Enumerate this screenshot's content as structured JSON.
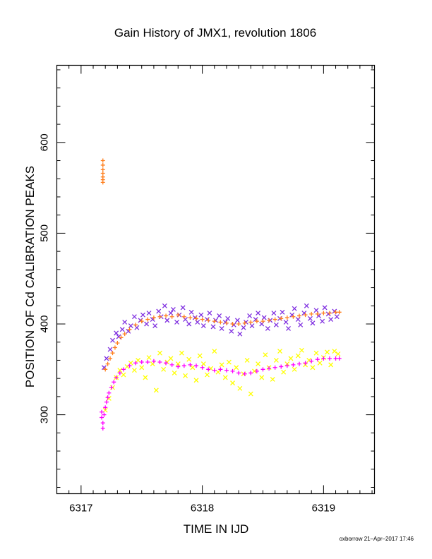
{
  "chart_data": {
    "type": "scatter",
    "title": "Gain History of JMX1, revolution 1806",
    "xlabel": "TIME IN IJD",
    "ylabel": "POSITION OF Cd CALIBRATION PEAKS",
    "credit": "oxborrow 21–Apr–2017 17:46",
    "xlim": [
      6316.8,
      6319.42
    ],
    "ylim": [
      213,
      685
    ],
    "xticks": [
      6317,
      6318,
      6319
    ],
    "yticks": [
      300,
      400,
      500,
      600
    ],
    "grid": false,
    "colors": {
      "purple": "#7f2fe0",
      "orange": "#ff7f1e",
      "yellow": "#ffff00",
      "magenta": "#ff00ff"
    },
    "series": [
      {
        "marker": "x",
        "color": "purple",
        "x": [
          6317.19,
          6317.21,
          6317.24,
          6317.26,
          6317.29,
          6317.31,
          6317.34,
          6317.36,
          6317.39,
          6317.41,
          6317.44,
          6317.46,
          6317.49,
          6317.51,
          6317.54,
          6317.56,
          6317.59,
          6317.61,
          6317.64,
          6317.66,
          6317.69,
          6317.71,
          6317.74,
          6317.76,
          6317.79,
          6317.81,
          6317.84,
          6317.86,
          6317.89,
          6317.91,
          6317.94,
          6317.96,
          6317.99,
          6318.01,
          6318.04,
          6318.06,
          6318.09,
          6318.11,
          6318.14,
          6318.16,
          6318.19,
          6318.21,
          6318.24,
          6318.26,
          6318.29,
          6318.31,
          6318.34,
          6318.36,
          6318.39,
          6318.41,
          6318.44,
          6318.46,
          6318.49,
          6318.51,
          6318.54,
          6318.56,
          6318.59,
          6318.61,
          6318.64,
          6318.66,
          6318.69,
          6318.71,
          6318.74,
          6318.76,
          6318.79,
          6318.81,
          6318.84,
          6318.86,
          6318.89,
          6318.91,
          6318.94,
          6318.96,
          6318.99,
          6319.01,
          6319.04,
          6319.06,
          6319.09,
          6319.11
        ],
        "y": [
          352,
          362,
          372,
          382,
          390,
          386,
          394,
          402,
          392,
          398,
          408,
          396,
          404,
          410,
          400,
          412,
          405,
          398,
          414,
          408,
          420,
          404,
          412,
          416,
          402,
          410,
          418,
          405,
          400,
          413,
          407,
          402,
          410,
          398,
          405,
          412,
          397,
          404,
          409,
          395,
          402,
          406,
          392,
          399,
          404,
          389,
          396,
          402,
          409,
          398,
          405,
          412,
          400,
          407,
          395,
          404,
          412,
          399,
          406,
          413,
          402,
          395,
          410,
          417,
          405,
          399,
          412,
          420,
          406,
          401,
          415,
          409,
          403,
          418,
          411,
          405,
          414,
          408
        ]
      },
      {
        "marker": "+",
        "color": "orange",
        "x": [
          6317.18,
          6317.18,
          6317.18,
          6317.18,
          6317.18,
          6317.18,
          6317.18,
          6317.2,
          6317.22,
          6317.24,
          6317.26,
          6317.28,
          6317.3,
          6317.33,
          6317.36,
          6317.4,
          6317.45,
          6317.5,
          6317.55,
          6317.6,
          6317.65,
          6317.7,
          6317.75,
          6317.8,
          6317.85,
          6317.9,
          6317.95,
          6318,
          6318.05,
          6318.1,
          6318.15,
          6318.2,
          6318.25,
          6318.3,
          6318.35,
          6318.4,
          6318.45,
          6318.5,
          6318.55,
          6318.6,
          6318.65,
          6318.7,
          6318.75,
          6318.8,
          6318.85,
          6318.9,
          6318.95,
          6319,
          6319.05,
          6319.1,
          6319.13
        ],
        "y": [
          580,
          575,
          570,
          566,
          562,
          559,
          556,
          350,
          356,
          362,
          368,
          374,
          379,
          385,
          389,
          394,
          399,
          403,
          405,
          407,
          408,
          409,
          408,
          410,
          408,
          407,
          406,
          405,
          404,
          403,
          402,
          401,
          400,
          400,
          401,
          402,
          403,
          403,
          404,
          405,
          406,
          407,
          408,
          409,
          410,
          411,
          411,
          412,
          412,
          413,
          413
        ]
      },
      {
        "marker": "x",
        "color": "yellow",
        "x": [
          6317.2,
          6317.23,
          6317.26,
          6317.29,
          6317.32,
          6317.35,
          6317.38,
          6317.41,
          6317.44,
          6317.47,
          6317.5,
          6317.53,
          6317.56,
          6317.59,
          6317.62,
          6317.65,
          6317.68,
          6317.71,
          6317.74,
          6317.77,
          6317.8,
          6317.83,
          6317.86,
          6317.89,
          6317.92,
          6317.95,
          6317.98,
          6318.01,
          6318.04,
          6318.07,
          6318.1,
          6318.13,
          6318.16,
          6318.19,
          6318.22,
          6318.25,
          6318.28,
          6318.31,
          6318.34,
          6318.37,
          6318.4,
          6318.43,
          6318.46,
          6318.49,
          6318.52,
          6318.55,
          6318.58,
          6318.61,
          6318.64,
          6318.67,
          6318.7,
          6318.73,
          6318.76,
          6318.79,
          6318.82,
          6318.85,
          6318.88,
          6318.91,
          6318.94,
          6318.97,
          6319,
          6319.03,
          6319.06,
          6319.09,
          6319.12
        ],
        "y": [
          305,
          318,
          330,
          341,
          349,
          344,
          353,
          357,
          349,
          360,
          352,
          341,
          363,
          356,
          327,
          368,
          350,
          358,
          362,
          346,
          356,
          368,
          343,
          361,
          352,
          338,
          365,
          356,
          344,
          351,
          370,
          347,
          355,
          341,
          358,
          335,
          352,
          329,
          345,
          360,
          323,
          348,
          356,
          341,
          366,
          352,
          339,
          360,
          370,
          347,
          356,
          362,
          350,
          365,
          371,
          355,
          360,
          352,
          368,
          357,
          363,
          369,
          355,
          370,
          367
        ]
      },
      {
        "marker": "+",
        "color": "magenta",
        "x": [
          6317.17,
          6317.17,
          6317.18,
          6317.18,
          6317.19,
          6317.2,
          6317.21,
          6317.22,
          6317.23,
          6317.25,
          6317.27,
          6317.29,
          6317.32,
          6317.35,
          6317.4,
          6317.45,
          6317.5,
          6317.55,
          6317.6,
          6317.65,
          6317.7,
          6317.75,
          6317.8,
          6317.85,
          6317.9,
          6317.95,
          6318,
          6318.05,
          6318.1,
          6318.15,
          6318.2,
          6318.25,
          6318.3,
          6318.35,
          6318.4,
          6318.45,
          6318.5,
          6318.55,
          6318.6,
          6318.65,
          6318.7,
          6318.75,
          6318.8,
          6318.85,
          6318.9,
          6318.95,
          6319,
          6319.05,
          6319.1,
          6319.13
        ],
        "y": [
          303,
          297,
          291,
          285,
          300,
          308,
          314,
          319,
          324,
          330,
          336,
          341,
          346,
          350,
          354,
          357,
          358,
          358,
          359,
          358,
          357,
          355,
          353,
          354,
          355,
          354,
          352,
          350,
          349,
          350,
          349,
          348,
          346,
          345,
          346,
          348,
          350,
          351,
          352,
          353,
          354,
          355,
          356,
          357,
          359,
          361,
          362,
          362,
          362,
          362
        ]
      }
    ]
  }
}
